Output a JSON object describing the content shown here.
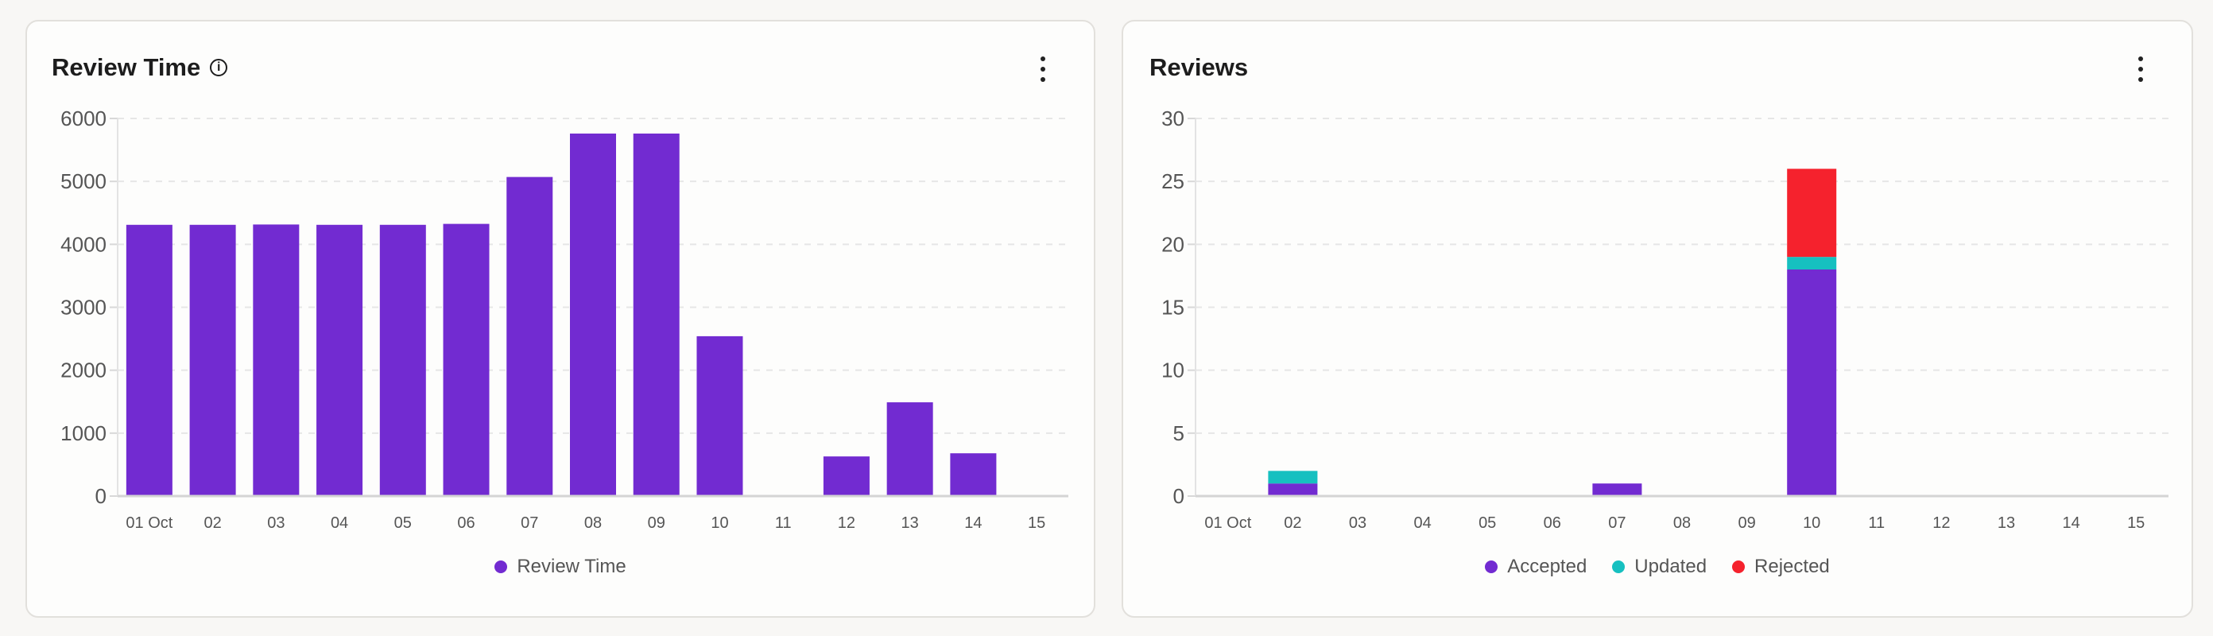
{
  "chart_data": [
    {
      "type": "bar",
      "title": "Review Time",
      "categories": [
        "01 Oct",
        "02",
        "03",
        "04",
        "05",
        "06",
        "07",
        "08",
        "09",
        "10",
        "11",
        "12",
        "13",
        "14",
        "15"
      ],
      "series": [
        {
          "name": "Review Time",
          "color": "#722bd1",
          "values": [
            4310,
            4310,
            4315,
            4310,
            4310,
            4325,
            5070,
            5760,
            5760,
            2540,
            0,
            630,
            1490,
            680,
            0
          ]
        }
      ],
      "ylim": [
        0,
        6000
      ],
      "yticks": [
        0,
        1000,
        2000,
        3000,
        4000,
        5000,
        6000
      ],
      "grid": true,
      "legend": "bottom",
      "has_info_icon": true
    },
    {
      "type": "bar",
      "stacked": true,
      "title": "Reviews",
      "categories": [
        "01 Oct",
        "02",
        "03",
        "04",
        "05",
        "06",
        "07",
        "08",
        "09",
        "10",
        "11",
        "12",
        "13",
        "14",
        "15"
      ],
      "series": [
        {
          "name": "Accepted",
          "color": "#722bd1",
          "values": [
            0,
            1,
            0,
            0,
            0,
            0,
            1,
            0,
            0,
            18,
            0,
            0,
            0,
            0,
            0
          ]
        },
        {
          "name": "Updated",
          "color": "#16c0c0",
          "values": [
            0,
            1,
            0,
            0,
            0,
            0,
            0,
            0,
            0,
            1,
            0,
            0,
            0,
            0,
            0
          ]
        },
        {
          "name": "Rejected",
          "color": "#f5222d",
          "values": [
            0,
            0,
            0,
            0,
            0,
            0,
            0,
            0,
            0,
            7,
            0,
            0,
            0,
            0,
            0
          ]
        }
      ],
      "ylim": [
        0,
        30
      ],
      "yticks": [
        0,
        5,
        10,
        15,
        20,
        25,
        30
      ],
      "grid": true,
      "legend": "bottom"
    }
  ]
}
